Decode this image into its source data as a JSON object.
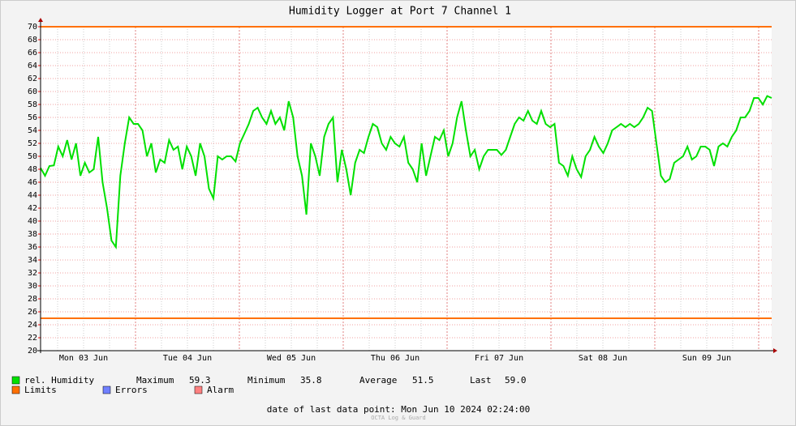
{
  "chart_data": {
    "type": "line",
    "title": "Humidity Logger at Port 7 Channel 1",
    "x_labels": [
      "Mon 03 Jun",
      "Tue 04 Jun",
      "Wed 05 Jun",
      "Thu 06 Jun",
      "Fri 07 Jun",
      "Sat 08 Jun",
      "Sun 09 Jun"
    ],
    "ylim": [
      20,
      70
    ],
    "yticks": [
      20,
      22,
      24,
      26,
      28,
      30,
      32,
      34,
      36,
      38,
      40,
      42,
      44,
      46,
      48,
      50,
      52,
      54,
      56,
      58,
      60,
      62,
      64,
      66,
      68,
      70
    ],
    "grid": true,
    "series": [
      {
        "name": "rel. Humidity",
        "color": "#00e000",
        "values": [
          48.2,
          47,
          48.5,
          48.6,
          51.5,
          50,
          52.5,
          49.5,
          52,
          47,
          49,
          47.5,
          48,
          53,
          46,
          42,
          37,
          36,
          47,
          52,
          56,
          55,
          55,
          54,
          50,
          52,
          47.5,
          49.5,
          49,
          52.5,
          51,
          51.5,
          48,
          51.5,
          50,
          47,
          52,
          50,
          45,
          43.5,
          50,
          49.5,
          50,
          50,
          49.2,
          52,
          53.5,
          55,
          57,
          57.5,
          56,
          55,
          57,
          55,
          56,
          54,
          58.5,
          56,
          50,
          47,
          41,
          52,
          50,
          47,
          53,
          55,
          56,
          46,
          51,
          48,
          44,
          49,
          51,
          50.5,
          53,
          55,
          54.5,
          52,
          51,
          53,
          52,
          51.5,
          53,
          49,
          48,
          46,
          52,
          47,
          50,
          53,
          52.5,
          54,
          50,
          52,
          56,
          58.5,
          54,
          50,
          51,
          48,
          50,
          51,
          51,
          51,
          50.2,
          51,
          53,
          55,
          56,
          55.5,
          57,
          55.5,
          55,
          57,
          55,
          54.5,
          55,
          49,
          48.5,
          47,
          50,
          48,
          46.8,
          50,
          51,
          53,
          51.5,
          50.5,
          52,
          54,
          54.5,
          55,
          54.5,
          55,
          54.5,
          55,
          56,
          57.5,
          57,
          52,
          47,
          46,
          46.5,
          49,
          49.5,
          50,
          51.5,
          49.5,
          50,
          51.5,
          51.5,
          51,
          48.5,
          51.5,
          52,
          51.5,
          53,
          54,
          56,
          56,
          57,
          59,
          59,
          58,
          59.3,
          59
        ]
      }
    ],
    "limits": {
      "name": "Limits",
      "color": "#ff7000",
      "values": [
        70,
        25
      ]
    },
    "legend_extra": [
      {
        "name": "Errors",
        "color": "#7080ff"
      },
      {
        "name": "Alarm",
        "color": "#ff8080"
      }
    ],
    "stats": [
      {
        "label": "Maximum",
        "value": "59.3"
      },
      {
        "label": "Minimum",
        "value": "35.8"
      },
      {
        "label": "Average",
        "value": "51.5"
      },
      {
        "label": "Last",
        "value": "59.0"
      }
    ],
    "footer": "date of last data point:  Mon Jun 10 2024 02:24:00",
    "watermark": "OCTA Log & Guard"
  }
}
